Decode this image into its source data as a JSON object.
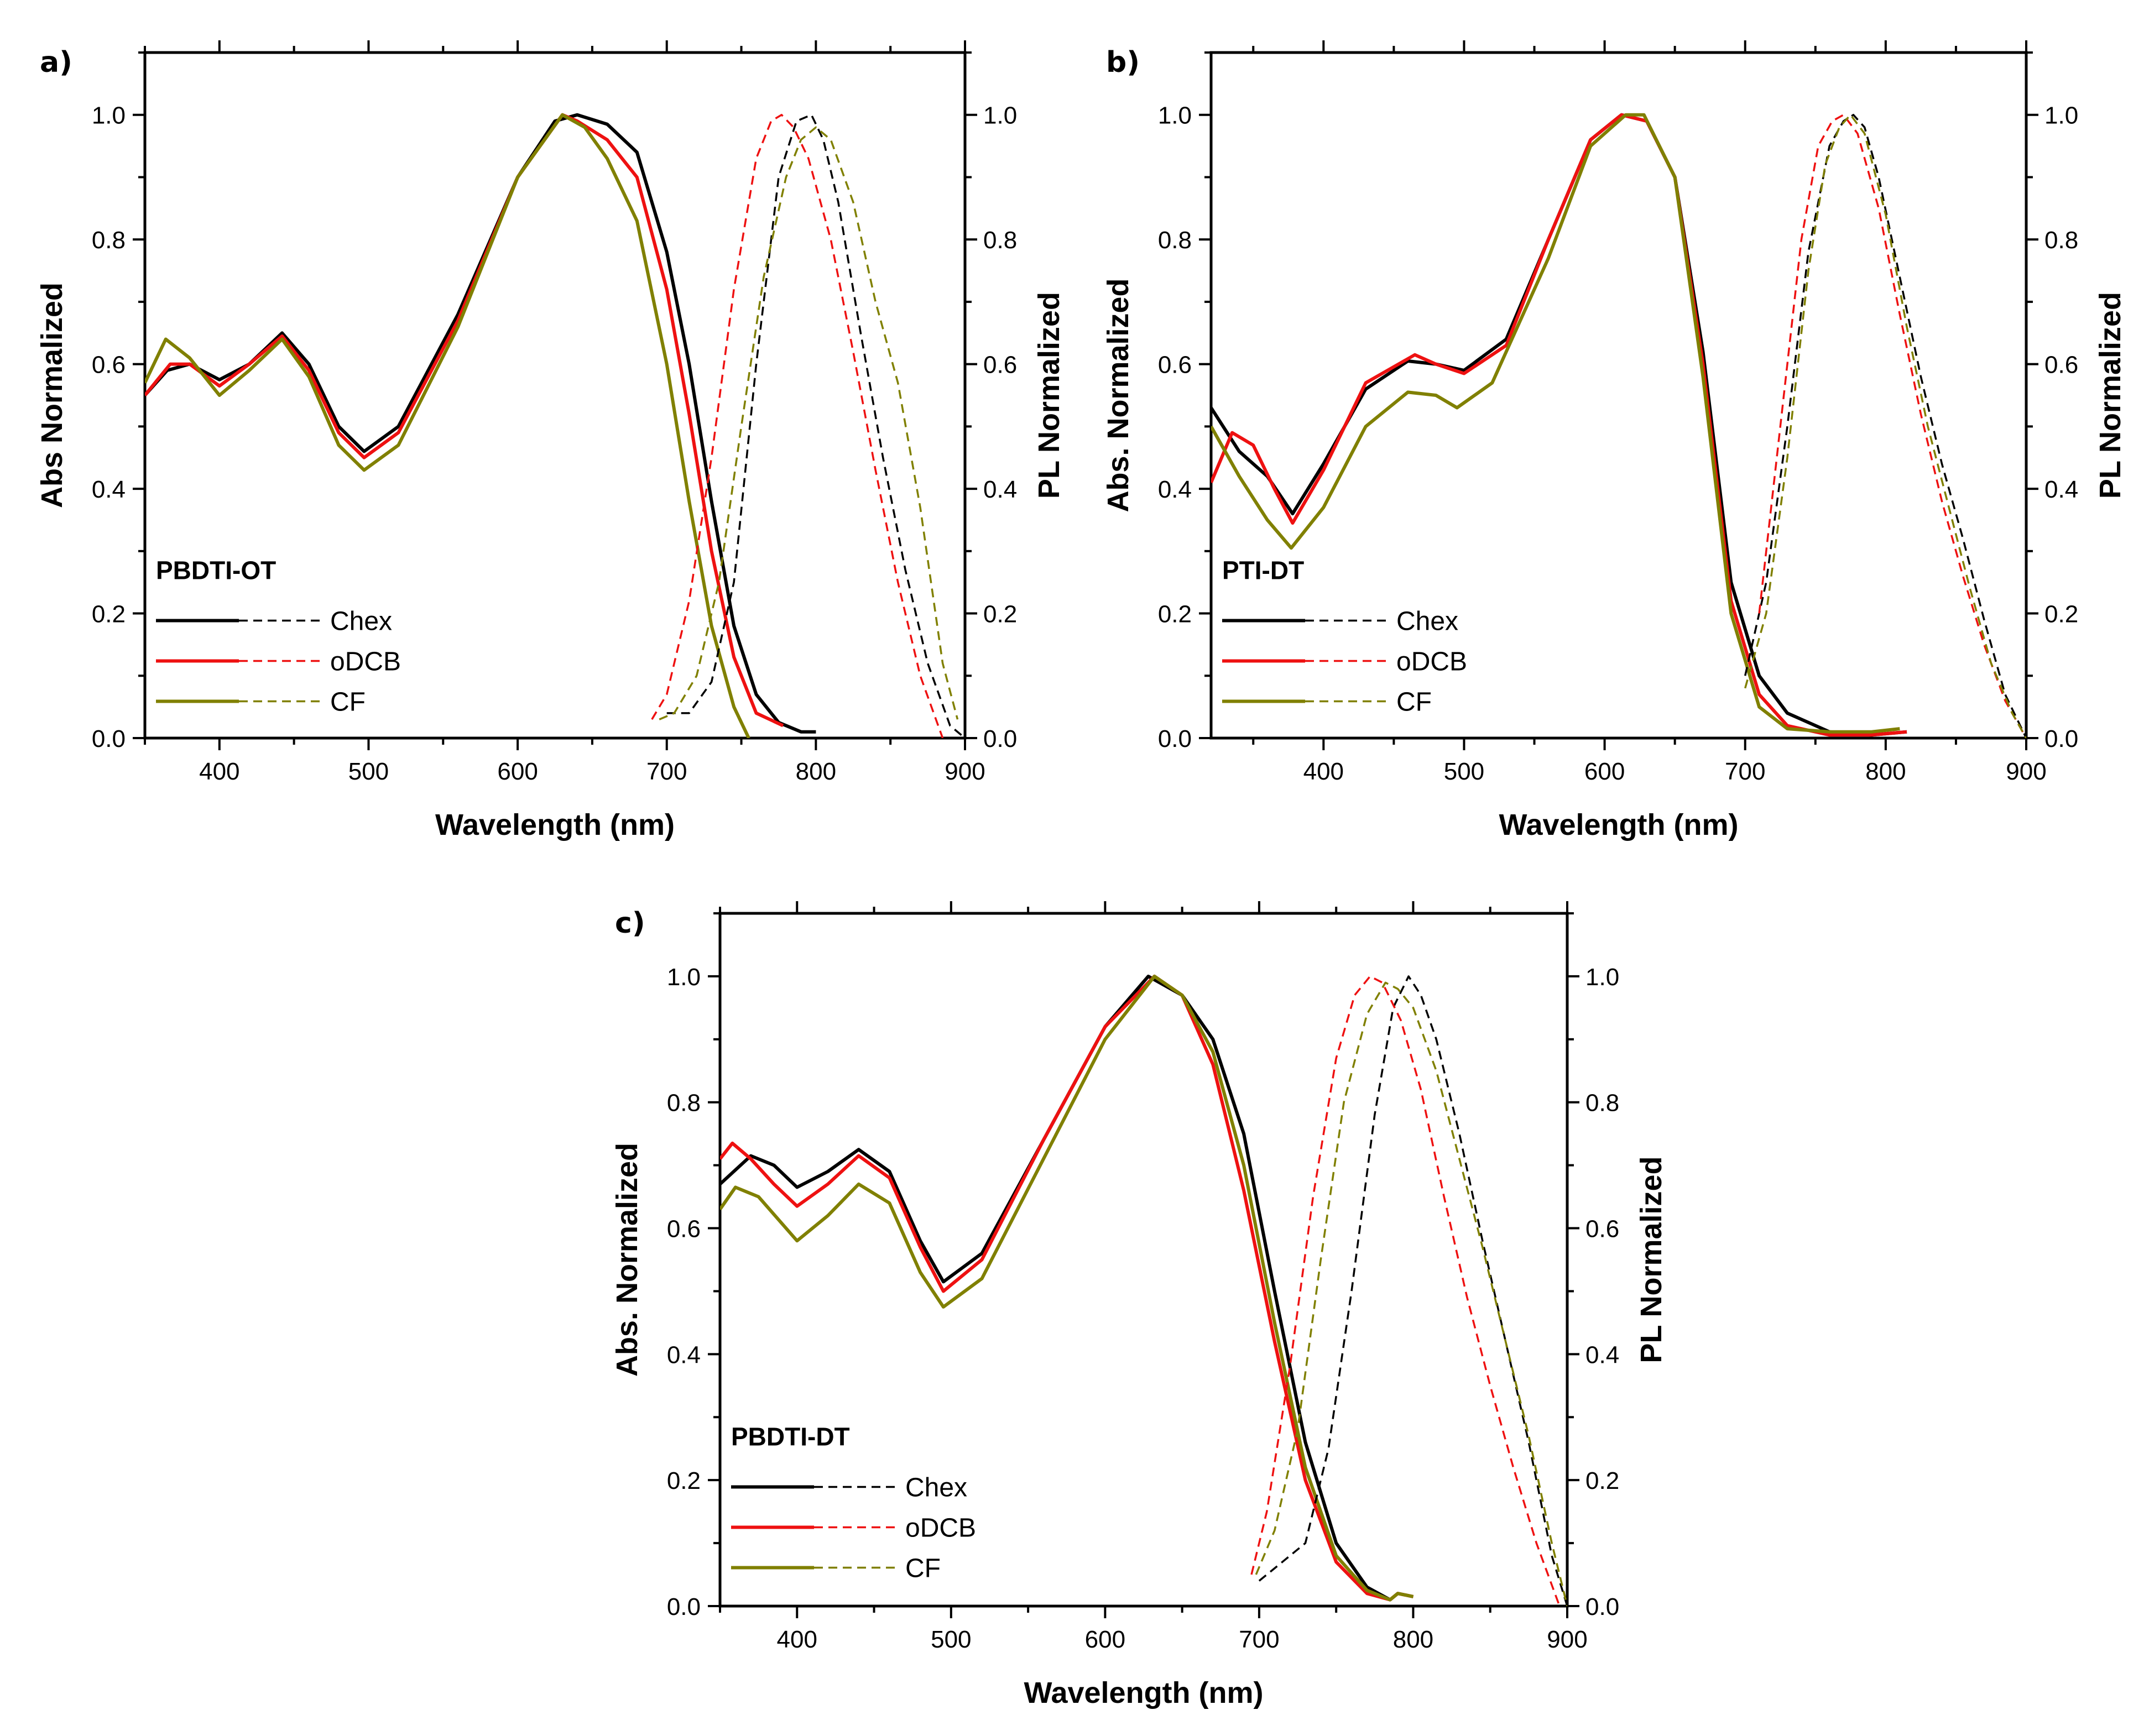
{
  "colors": {
    "Chex": "#000000",
    "oDCB": "#ee1111",
    "CF": "#808000"
  },
  "chart_data": [
    {
      "panel": "a)",
      "type": "line",
      "xlabel": "Wavelength (nm)",
      "ylabel": "Abs Normalized",
      "y2label": "PL Normalized",
      "xlim": [
        350,
        900
      ],
      "ylim": [
        0,
        1.1
      ],
      "xticks": [
        "400",
        "500",
        "600",
        "700",
        "800",
        "900"
      ],
      "yticks": [
        "0.0",
        "0.2",
        "0.4",
        "0.6",
        "0.8",
        "1.0"
      ],
      "legend_title": "PBDTI-OT",
      "legend": [
        "Chex",
        "oDCB",
        "CF"
      ],
      "series": [
        {
          "name": "Chex",
          "kind": "abs",
          "x": [
            350,
            365,
            380,
            400,
            420,
            442,
            460,
            480,
            497,
            520,
            560,
            600,
            625,
            640,
            660,
            680,
            700,
            715,
            730,
            745,
            760,
            775,
            790,
            800
          ],
          "y": [
            0.55,
            0.59,
            0.6,
            0.575,
            0.6,
            0.65,
            0.6,
            0.5,
            0.46,
            0.5,
            0.68,
            0.9,
            0.99,
            1.0,
            0.985,
            0.94,
            0.78,
            0.6,
            0.38,
            0.18,
            0.07,
            0.025,
            0.01,
            0.01
          ]
        },
        {
          "name": "oDCB",
          "kind": "abs",
          "x": [
            350,
            367,
            380,
            400,
            420,
            442,
            460,
            480,
            497,
            520,
            560,
            600,
            630,
            640,
            660,
            680,
            700,
            715,
            730,
            745,
            760,
            778
          ],
          "y": [
            0.55,
            0.6,
            0.6,
            0.565,
            0.6,
            0.645,
            0.59,
            0.49,
            0.45,
            0.49,
            0.67,
            0.9,
            1.0,
            0.99,
            0.96,
            0.9,
            0.72,
            0.52,
            0.3,
            0.13,
            0.04,
            0.02
          ]
        },
        {
          "name": "CF",
          "kind": "abs",
          "x": [
            350,
            364,
            380,
            400,
            420,
            442,
            460,
            480,
            497,
            520,
            560,
            600,
            630,
            645,
            660,
            680,
            700,
            715,
            730,
            745,
            755
          ],
          "y": [
            0.57,
            0.64,
            0.61,
            0.55,
            0.59,
            0.64,
            0.58,
            0.47,
            0.43,
            0.47,
            0.66,
            0.9,
            1.0,
            0.98,
            0.93,
            0.83,
            0.6,
            0.38,
            0.18,
            0.05,
            0.0
          ]
        },
        {
          "name": "Chex",
          "kind": "pl",
          "x": [
            700,
            715,
            730,
            745,
            760,
            775,
            787,
            797,
            805,
            815,
            830,
            845,
            860,
            875,
            890,
            900
          ],
          "y": [
            0.04,
            0.04,
            0.09,
            0.25,
            0.6,
            0.9,
            0.99,
            1.0,
            0.96,
            0.86,
            0.65,
            0.45,
            0.27,
            0.12,
            0.02,
            0.0
          ]
        },
        {
          "name": "oDCB",
          "kind": "pl",
          "x": [
            690,
            700,
            715,
            730,
            745,
            760,
            770,
            777,
            785,
            795,
            810,
            825,
            840,
            855,
            870,
            885
          ],
          "y": [
            0.03,
            0.07,
            0.22,
            0.45,
            0.72,
            0.93,
            0.99,
            1.0,
            0.98,
            0.93,
            0.8,
            0.62,
            0.43,
            0.25,
            0.1,
            0.0
          ]
        },
        {
          "name": "CF",
          "kind": "pl",
          "x": [
            695,
            705,
            720,
            735,
            750,
            765,
            780,
            790,
            800,
            810,
            825,
            840,
            855,
            870,
            885,
            895
          ],
          "y": [
            0.03,
            0.04,
            0.1,
            0.25,
            0.5,
            0.74,
            0.9,
            0.96,
            0.98,
            0.96,
            0.86,
            0.7,
            0.57,
            0.37,
            0.12,
            0.03
          ]
        }
      ]
    },
    {
      "panel": "b)",
      "type": "line",
      "xlabel": "Wavelength (nm)",
      "ylabel": "Abs. Normalized",
      "y2label": "PL Normalized",
      "xlim": [
        320,
        900
      ],
      "ylim": [
        0,
        1.1
      ],
      "xticks": [
        "400",
        "500",
        "600",
        "700",
        "800",
        "900"
      ],
      "yticks": [
        "0.0",
        "0.2",
        "0.4",
        "0.6",
        "0.8",
        "1.0"
      ],
      "legend_title": "PTI-DT",
      "legend": [
        "Chex",
        "oDCB",
        "CF"
      ],
      "series": [
        {
          "name": "Chex",
          "kind": "abs",
          "x": [
            320,
            340,
            360,
            378,
            400,
            430,
            460,
            480,
            500,
            530,
            560,
            590,
            612,
            630,
            650,
            670,
            690,
            710,
            730,
            760,
            790,
            815
          ],
          "y": [
            0.53,
            0.46,
            0.42,
            0.36,
            0.44,
            0.56,
            0.605,
            0.6,
            0.59,
            0.64,
            0.8,
            0.96,
            1.0,
            0.99,
            0.9,
            0.62,
            0.25,
            0.1,
            0.04,
            0.01,
            0.005,
            0.01
          ]
        },
        {
          "name": "oDCB",
          "kind": "abs",
          "x": [
            320,
            335,
            350,
            365,
            378,
            400,
            430,
            465,
            480,
            500,
            530,
            560,
            590,
            612,
            630,
            650,
            670,
            690,
            710,
            730,
            760,
            790,
            815
          ],
          "y": [
            0.41,
            0.49,
            0.47,
            0.4,
            0.345,
            0.43,
            0.57,
            0.615,
            0.6,
            0.585,
            0.63,
            0.8,
            0.96,
            1.0,
            0.99,
            0.9,
            0.6,
            0.22,
            0.07,
            0.02,
            0.005,
            0.005,
            0.01
          ]
        },
        {
          "name": "CF",
          "kind": "abs",
          "x": [
            320,
            340,
            360,
            377,
            400,
            430,
            460,
            480,
            495,
            520,
            560,
            590,
            615,
            628,
            650,
            670,
            690,
            710,
            730,
            760,
            790,
            810
          ],
          "y": [
            0.5,
            0.42,
            0.35,
            0.305,
            0.37,
            0.5,
            0.555,
            0.55,
            0.53,
            0.57,
            0.77,
            0.95,
            1.0,
            1.0,
            0.9,
            0.58,
            0.2,
            0.05,
            0.015,
            0.01,
            0.01,
            0.015
          ]
        },
        {
          "name": "Chex",
          "kind": "pl",
          "x": [
            700,
            715,
            730,
            745,
            760,
            770,
            777,
            785,
            795,
            810,
            825,
            840,
            855,
            870,
            885,
            900
          ],
          "y": [
            0.1,
            0.25,
            0.5,
            0.78,
            0.95,
            0.99,
            1.0,
            0.98,
            0.9,
            0.74,
            0.58,
            0.44,
            0.32,
            0.19,
            0.07,
            0.0
          ]
        },
        {
          "name": "oDCB",
          "kind": "pl",
          "x": [
            710,
            725,
            740,
            752,
            762,
            770,
            780,
            795,
            810,
            825,
            840,
            855,
            870,
            885,
            900
          ],
          "y": [
            0.2,
            0.5,
            0.8,
            0.95,
            0.99,
            1.0,
            0.97,
            0.85,
            0.68,
            0.52,
            0.38,
            0.26,
            0.15,
            0.06,
            0.0
          ]
        },
        {
          "name": "CF",
          "kind": "pl",
          "x": [
            700,
            715,
            730,
            745,
            757,
            767,
            775,
            785,
            800,
            815,
            830,
            845,
            860,
            875,
            890,
            900
          ],
          "y": [
            0.08,
            0.2,
            0.45,
            0.75,
            0.92,
            0.98,
            1.0,
            0.97,
            0.84,
            0.66,
            0.5,
            0.37,
            0.24,
            0.12,
            0.04,
            0.0
          ]
        }
      ]
    },
    {
      "panel": "c)",
      "type": "line",
      "xlabel": "Wavelength (nm)",
      "ylabel": "Abs. Normalized",
      "y2label": "PL Normalized",
      "xlim": [
        350,
        900
      ],
      "ylim": [
        0,
        1.1
      ],
      "xticks": [
        "400",
        "500",
        "600",
        "700",
        "800",
        "900"
      ],
      "yticks": [
        "0.0",
        "0.2",
        "0.4",
        "0.6",
        "0.8",
        "1.0"
      ],
      "legend_title": "PBDTI-DT",
      "legend": [
        "Chex",
        "oDCB",
        "CF"
      ],
      "series": [
        {
          "name": "Chex",
          "kind": "abs",
          "x": [
            350,
            370,
            385,
            400,
            420,
            440,
            460,
            480,
            495,
            520,
            560,
            600,
            628,
            650,
            670,
            690,
            710,
            730,
            750,
            770,
            785,
            790,
            800
          ],
          "y": [
            0.67,
            0.715,
            0.7,
            0.665,
            0.69,
            0.725,
            0.69,
            0.58,
            0.515,
            0.56,
            0.74,
            0.92,
            1.0,
            0.97,
            0.9,
            0.75,
            0.5,
            0.26,
            0.1,
            0.03,
            0.01,
            0.02,
            0.015
          ]
        },
        {
          "name": "oDCB",
          "kind": "abs",
          "x": [
            350,
            358,
            370,
            385,
            400,
            420,
            440,
            460,
            480,
            495,
            520,
            560,
            600,
            632,
            650,
            670,
            690,
            710,
            730,
            750,
            770,
            785,
            790,
            800
          ],
          "y": [
            0.71,
            0.735,
            0.71,
            0.67,
            0.635,
            0.67,
            0.715,
            0.68,
            0.57,
            0.5,
            0.55,
            0.74,
            0.92,
            1.0,
            0.97,
            0.86,
            0.66,
            0.42,
            0.2,
            0.07,
            0.02,
            0.01,
            0.02,
            0.015
          ]
        },
        {
          "name": "CF",
          "kind": "abs",
          "x": [
            350,
            360,
            375,
            400,
            420,
            440,
            460,
            480,
            495,
            520,
            560,
            600,
            632,
            650,
            670,
            690,
            710,
            730,
            750,
            770,
            785,
            790,
            800
          ],
          "y": [
            0.63,
            0.665,
            0.65,
            0.58,
            0.62,
            0.67,
            0.64,
            0.53,
            0.475,
            0.52,
            0.71,
            0.9,
            1.0,
            0.97,
            0.88,
            0.7,
            0.45,
            0.22,
            0.08,
            0.025,
            0.01,
            0.02,
            0.015
          ]
        },
        {
          "name": "Chex",
          "kind": "pl",
          "x": [
            700,
            715,
            730,
            745,
            760,
            775,
            787,
            797,
            805,
            815,
            830,
            845,
            860,
            875,
            890,
            900
          ],
          "y": [
            0.04,
            0.07,
            0.1,
            0.25,
            0.5,
            0.78,
            0.95,
            1.0,
            0.97,
            0.9,
            0.75,
            0.58,
            0.42,
            0.26,
            0.08,
            0.0
          ]
        },
        {
          "name": "oDCB",
          "kind": "pl",
          "x": [
            695,
            705,
            720,
            735,
            750,
            762,
            772,
            780,
            792,
            805,
            820,
            835,
            850,
            865,
            880,
            895
          ],
          "y": [
            0.05,
            0.15,
            0.38,
            0.65,
            0.87,
            0.97,
            1.0,
            0.99,
            0.93,
            0.82,
            0.65,
            0.49,
            0.35,
            0.22,
            0.1,
            0.0
          ]
        },
        {
          "name": "CF",
          "kind": "pl",
          "x": [
            698,
            710,
            725,
            740,
            755,
            770,
            782,
            790,
            800,
            815,
            830,
            845,
            860,
            875,
            890,
            900
          ],
          "y": [
            0.05,
            0.12,
            0.28,
            0.55,
            0.8,
            0.94,
            0.99,
            0.98,
            0.95,
            0.85,
            0.71,
            0.57,
            0.42,
            0.27,
            0.1,
            0.0
          ]
        }
      ]
    }
  ]
}
